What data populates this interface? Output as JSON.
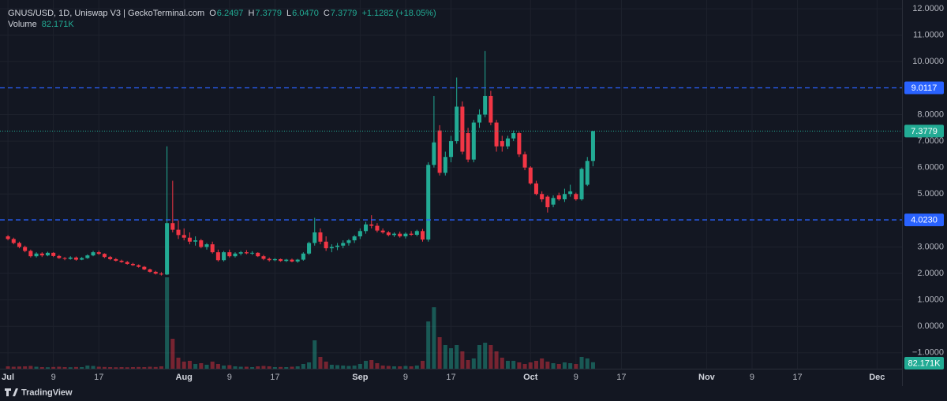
{
  "legend": {
    "symbol": "GNUS/USD, 1D, Uniswap V3 | GeckoTerminal.com",
    "fields": [
      {
        "key": "O",
        "value": "6.2497"
      },
      {
        "key": "H",
        "value": "7.3779"
      },
      {
        "key": "L",
        "value": "6.0470"
      },
      {
        "key": "C",
        "value": "7.3779"
      }
    ],
    "change": "+1.1282 (+18.05%)",
    "volume_title": "Volume",
    "volume_value": "82.171K"
  },
  "brand": "TradingView",
  "chart_data": {
    "type": "candlestick",
    "open": [
      3.4,
      3.3,
      3.15,
      3.0,
      2.85,
      2.65,
      2.75,
      2.68,
      2.78,
      2.66,
      2.58,
      2.55,
      2.6,
      2.52,
      2.58,
      2.68,
      2.8,
      2.74,
      2.62,
      2.54,
      2.48,
      2.43,
      2.36,
      2.31,
      2.25,
      2.15,
      2.06,
      1.99,
      1.96,
      3.9,
      3.65,
      3.45,
      3.35,
      3.2,
      3.25,
      3.0,
      3.1,
      2.8,
      2.5,
      2.8,
      2.65,
      2.75,
      2.8,
      2.76,
      2.78,
      2.65,
      2.55,
      2.5,
      2.54,
      2.47,
      2.52,
      2.45,
      2.52,
      2.75,
      3.15,
      3.55,
      3.2,
      2.95,
      3.0,
      3.05,
      3.15,
      3.25,
      3.4,
      3.6,
      3.85,
      3.8,
      3.62,
      3.55,
      3.45,
      3.5,
      3.4,
      3.5,
      3.46,
      3.6,
      3.28,
      6.1,
      7.4,
      5.8,
      6.4,
      7.0,
      8.3,
      7.3,
      6.3,
      7.7,
      8.0,
      8.7,
      7.7,
      7.0,
      6.8,
      7.1,
      7.3,
      6.5,
      6.0,
      5.4,
      5.0,
      4.9,
      4.6,
      4.95,
      4.8,
      5.0,
      5.0,
      4.8,
      5.35,
      6.2497
    ],
    "high": [
      3.45,
      3.35,
      3.2,
      3.05,
      2.9,
      2.8,
      2.8,
      2.82,
      2.8,
      2.7,
      2.62,
      2.65,
      2.64,
      2.62,
      2.72,
      2.85,
      2.86,
      2.76,
      2.66,
      2.58,
      2.52,
      2.47,
      2.4,
      2.34,
      2.28,
      2.18,
      2.1,
      2.05,
      6.8,
      5.5,
      4.0,
      3.7,
      3.55,
      3.4,
      3.3,
      3.15,
      3.2,
      2.9,
      2.85,
      2.9,
      2.8,
      2.85,
      2.88,
      2.84,
      2.8,
      2.7,
      2.6,
      2.58,
      2.56,
      2.55,
      2.56,
      2.55,
      2.8,
      3.2,
      4.1,
      3.7,
      3.4,
      3.1,
      3.15,
      3.25,
      3.3,
      3.45,
      3.7,
      3.95,
      4.2,
      3.9,
      3.7,
      3.6,
      3.55,
      3.58,
      3.55,
      3.6,
      3.65,
      3.68,
      6.2,
      8.7,
      7.6,
      6.6,
      7.2,
      9.4,
      8.5,
      7.5,
      7.8,
      8.2,
      10.4,
      8.9,
      7.8,
      7.2,
      7.2,
      7.4,
      7.35,
      6.6,
      6.05,
      5.5,
      5.1,
      4.95,
      4.95,
      5.05,
      5.2,
      5.35,
      5.05,
      6.0,
      6.4,
      7.3779
    ],
    "low": [
      3.25,
      3.1,
      2.95,
      2.8,
      2.6,
      2.6,
      2.62,
      2.65,
      2.62,
      2.55,
      2.5,
      2.52,
      2.48,
      2.5,
      2.55,
      2.65,
      2.7,
      2.58,
      2.5,
      2.45,
      2.4,
      2.33,
      2.28,
      2.22,
      2.12,
      2.03,
      1.96,
      1.92,
      1.94,
      3.55,
      3.3,
      3.25,
      3.1,
      3.05,
      2.95,
      2.9,
      2.75,
      2.45,
      2.45,
      2.6,
      2.6,
      2.68,
      2.72,
      2.7,
      2.62,
      2.5,
      2.45,
      2.46,
      2.44,
      2.43,
      2.42,
      2.4,
      2.48,
      2.7,
      3.05,
      3.1,
      2.85,
      2.8,
      2.88,
      2.95,
      3.05,
      3.15,
      3.3,
      3.5,
      3.7,
      3.55,
      3.5,
      3.4,
      3.38,
      3.35,
      3.32,
      3.42,
      3.4,
      3.2,
      3.2,
      6.0,
      5.7,
      5.7,
      6.2,
      6.9,
      6.5,
      6.2,
      6.2,
      7.5,
      7.9,
      7.6,
      6.6,
      6.6,
      6.7,
      7.0,
      6.4,
      5.9,
      5.35,
      4.95,
      4.7,
      4.3,
      4.5,
      4.75,
      4.7,
      4.9,
      4.75,
      4.75,
      5.3,
      6.047
    ],
    "close": [
      3.3,
      3.15,
      3.0,
      2.85,
      2.65,
      2.75,
      2.68,
      2.78,
      2.66,
      2.58,
      2.55,
      2.6,
      2.52,
      2.58,
      2.68,
      2.8,
      2.74,
      2.62,
      2.54,
      2.48,
      2.43,
      2.36,
      2.31,
      2.25,
      2.15,
      2.06,
      1.99,
      1.96,
      3.9,
      3.65,
      3.45,
      3.35,
      3.2,
      3.25,
      3.0,
      3.1,
      2.8,
      2.5,
      2.8,
      2.65,
      2.75,
      2.8,
      2.76,
      2.78,
      2.65,
      2.55,
      2.5,
      2.54,
      2.47,
      2.52,
      2.45,
      2.52,
      2.75,
      3.15,
      3.55,
      3.2,
      2.95,
      3.0,
      3.05,
      3.15,
      3.25,
      3.4,
      3.6,
      3.85,
      3.8,
      3.62,
      3.55,
      3.45,
      3.5,
      3.4,
      3.5,
      3.46,
      3.6,
      3.28,
      6.1,
      6.95,
      5.8,
      6.4,
      7.0,
      8.3,
      6.6,
      6.3,
      7.7,
      8.0,
      8.7,
      7.7,
      6.8,
      6.8,
      7.1,
      7.3,
      6.5,
      6.0,
      5.4,
      5.0,
      4.8,
      4.5,
      4.85,
      4.8,
      5.0,
      5.1,
      4.8,
      5.95,
      6.25,
      7.3779
    ],
    "volume": [
      30000,
      25000,
      28000,
      30000,
      35000,
      25000,
      20000,
      18000,
      22000,
      25000,
      20000,
      18000,
      22000,
      20000,
      40000,
      35000,
      25000,
      22000,
      20000,
      18000,
      20000,
      18000,
      20000,
      22000,
      20000,
      25000,
      22000,
      30000,
      1160000,
      380000,
      140000,
      90000,
      100000,
      60000,
      70000,
      50000,
      90000,
      60000,
      40000,
      45000,
      30000,
      25000,
      25000,
      20000,
      30000,
      35000,
      30000,
      20000,
      22000,
      20000,
      25000,
      30000,
      60000,
      80000,
      360000,
      150000,
      90000,
      50000,
      45000,
      40000,
      35000,
      40000,
      60000,
      100000,
      110000,
      70000,
      40000,
      35000,
      30000,
      30000,
      35000,
      30000,
      40000,
      100000,
      600000,
      780000,
      400000,
      300000,
      260000,
      300000,
      220000,
      110000,
      130000,
      300000,
      330000,
      300000,
      220000,
      140000,
      100000,
      100000,
      80000,
      60000,
      80000,
      100000,
      130000,
      90000,
      70000,
      60000,
      80000,
      70000,
      60000,
      150000,
      130000,
      82171
    ],
    "last_volume": {
      "value": 82171,
      "label": "82.171K"
    },
    "up_color": "#22ab94",
    "down_color": "#f23645",
    "ylim": [
      -1.6,
      12.33
    ],
    "yticks": [
      {
        "value": 12,
        "label": "12.0000"
      },
      {
        "value": 11,
        "label": "11.0000"
      },
      {
        "value": 10,
        "label": "10.0000"
      },
      {
        "value": 8,
        "label": "8.0000"
      },
      {
        "value": 7,
        "label": "7.0000"
      },
      {
        "value": 6,
        "label": "6.0000"
      },
      {
        "value": 5,
        "label": "5.0000"
      },
      {
        "value": 3,
        "label": "3.0000"
      },
      {
        "value": 2,
        "label": "2.0000"
      },
      {
        "value": 1,
        "label": "1.0000"
      },
      {
        "value": 0,
        "label": "0.0000"
      },
      {
        "value": -1,
        "label": "−1.0000"
      }
    ],
    "xlim": [
      -1.4,
      157.4
    ],
    "xticks": [
      {
        "value": 0,
        "label": "Jul"
      },
      {
        "value": 8,
        "label": "9"
      },
      {
        "value": 16,
        "label": "17"
      },
      {
        "value": 31,
        "label": "Aug"
      },
      {
        "value": 39,
        "label": "9"
      },
      {
        "value": 47,
        "label": "17"
      },
      {
        "value": 62,
        "label": "Sep"
      },
      {
        "value": 70,
        "label": "9"
      },
      {
        "value": 78,
        "label": "17"
      },
      {
        "value": 92,
        "label": "Oct"
      },
      {
        "value": 100,
        "label": "9"
      },
      {
        "value": 108,
        "label": "17"
      },
      {
        "value": 123,
        "label": "Nov"
      },
      {
        "value": 131,
        "label": "9"
      },
      {
        "value": 139,
        "label": "17"
      },
      {
        "value": 153,
        "label": "Dec"
      }
    ],
    "hlines": [
      {
        "value": 9.0117,
        "label": "9.0117",
        "color": "#2962ff"
      },
      {
        "value": 4.023,
        "label": "4.0230",
        "color": "#2962ff"
      }
    ],
    "last_price": {
      "value": 7.3779,
      "label": "7.3779"
    },
    "grid": true
  }
}
